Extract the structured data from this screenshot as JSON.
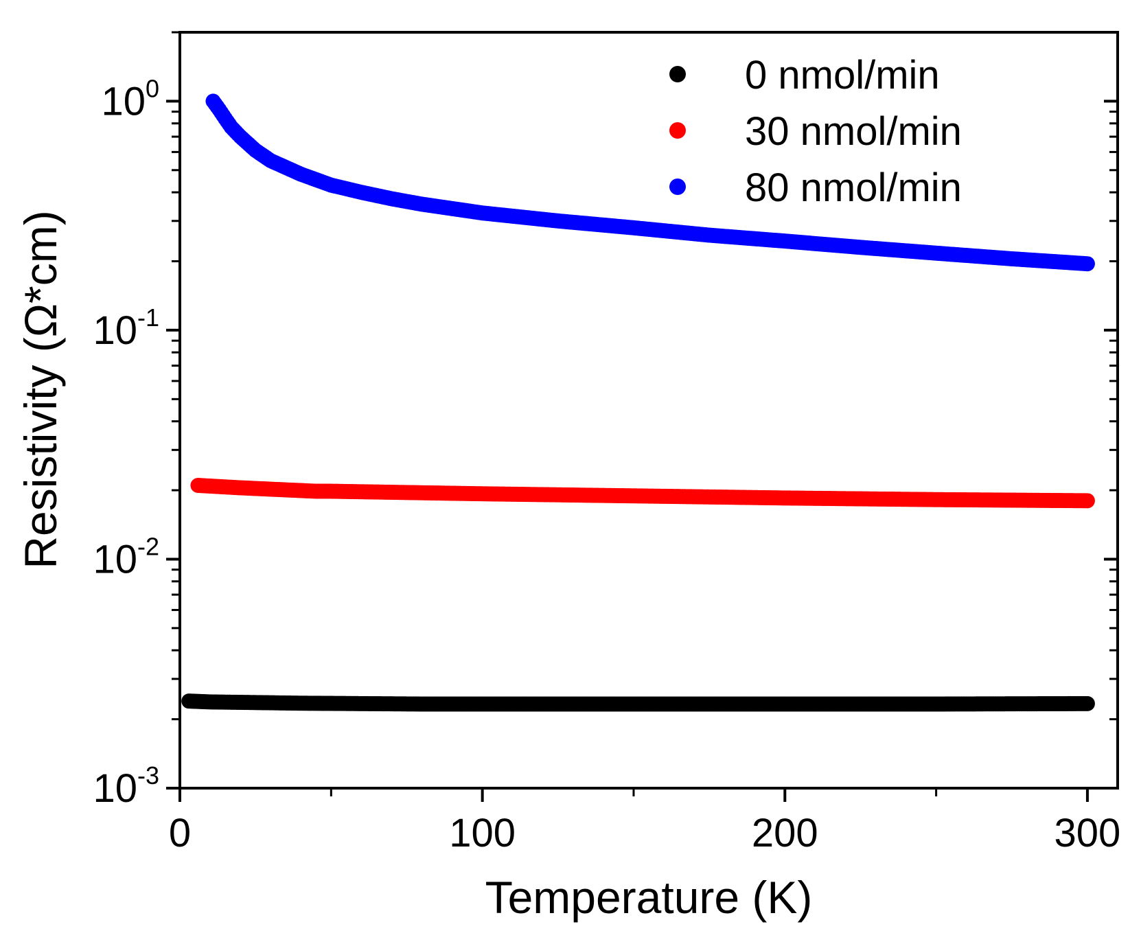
{
  "chart_data": {
    "type": "scatter",
    "title": "",
    "xlabel": "Temperature (K)",
    "ylabel": "Resistivity (Ω*cm)",
    "xlim": [
      0,
      310
    ],
    "ylim": [
      0.001,
      2.0
    ],
    "yscale": "log",
    "grid": false,
    "legend_position": "top-right",
    "x_ticks": [
      {
        "value": 0,
        "label": "0"
      },
      {
        "value": 100,
        "label": "100"
      },
      {
        "value": 200,
        "label": "200"
      },
      {
        "value": 300,
        "label": "300"
      }
    ],
    "y_ticks": [
      {
        "value": 0.001,
        "base": "10",
        "exp": "-3"
      },
      {
        "value": 0.01,
        "base": "10",
        "exp": "-2"
      },
      {
        "value": 0.1,
        "base": "10",
        "exp": "-1"
      },
      {
        "value": 1,
        "base": "10",
        "exp": "0"
      }
    ],
    "series": [
      {
        "name": "0 nmol/min",
        "color": "#000000",
        "points": [
          [
            3,
            0.0024
          ],
          [
            10,
            0.00238
          ],
          [
            20,
            0.00237
          ],
          [
            40,
            0.00235
          ],
          [
            60,
            0.00234
          ],
          [
            80,
            0.00233
          ],
          [
            100,
            0.00233
          ],
          [
            150,
            0.00233
          ],
          [
            200,
            0.00233
          ],
          [
            250,
            0.00233
          ],
          [
            300,
            0.00234
          ]
        ]
      },
      {
        "name": "30 nmol/min",
        "color": "#ff0000",
        "points": [
          [
            6,
            0.021
          ],
          [
            20,
            0.0205
          ],
          [
            45,
            0.0198
          ],
          [
            50,
            0.0198
          ],
          [
            100,
            0.0193
          ],
          [
            150,
            0.0189
          ],
          [
            200,
            0.0185
          ],
          [
            250,
            0.0182
          ],
          [
            300,
            0.018
          ]
        ]
      },
      {
        "name": "80 nmol/min",
        "color": "#0000ff",
        "points": [
          [
            11,
            1.0
          ],
          [
            13,
            0.92
          ],
          [
            15,
            0.84
          ],
          [
            17,
            0.77
          ],
          [
            20,
            0.7
          ],
          [
            25,
            0.61
          ],
          [
            30,
            0.55
          ],
          [
            40,
            0.48
          ],
          [
            50,
            0.43
          ],
          [
            60,
            0.4
          ],
          [
            70,
            0.375
          ],
          [
            80,
            0.355
          ],
          [
            100,
            0.325
          ],
          [
            125,
            0.3
          ],
          [
            150,
            0.28
          ],
          [
            175,
            0.26
          ],
          [
            200,
            0.245
          ],
          [
            225,
            0.23
          ],
          [
            250,
            0.217
          ],
          [
            275,
            0.205
          ],
          [
            300,
            0.195
          ]
        ]
      }
    ]
  }
}
